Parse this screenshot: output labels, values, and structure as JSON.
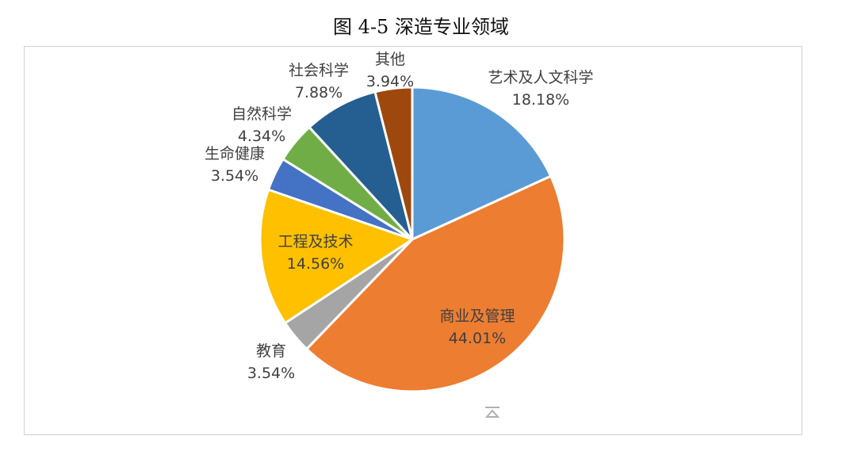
{
  "title": "图 4-5 深造专业领域",
  "chart_data": {
    "type": "pie",
    "title": "图 4-5 深造专业领域",
    "slices": [
      {
        "label": "艺术及人文科学",
        "value": 18.18,
        "value_label": "18.18%",
        "color": "#5B9BD5"
      },
      {
        "label": "商业及管理",
        "value": 44.01,
        "value_label": "44.01%",
        "color": "#ED7D31"
      },
      {
        "label": "教育",
        "value": 3.54,
        "value_label": "3.54%",
        "color": "#A5A5A5"
      },
      {
        "label": "工程及技术",
        "value": 14.56,
        "value_label": "14.56%",
        "color": "#FFC000"
      },
      {
        "label": "生命健康",
        "value": 3.54,
        "value_label": "3.54%",
        "color": "#4472C4"
      },
      {
        "label": "自然科学",
        "value": 4.34,
        "value_label": "4.34%",
        "color": "#70AD47"
      },
      {
        "label": "社会科学",
        "value": 7.88,
        "value_label": "7.88%",
        "color": "#255E91"
      },
      {
        "label": "其他",
        "value": 3.94,
        "value_label": "3.94%",
        "color": "#9E480E"
      }
    ],
    "start_angle_deg": 0,
    "direction": "clockwise",
    "legend": "none",
    "data_labels": "category-and-percent"
  }
}
